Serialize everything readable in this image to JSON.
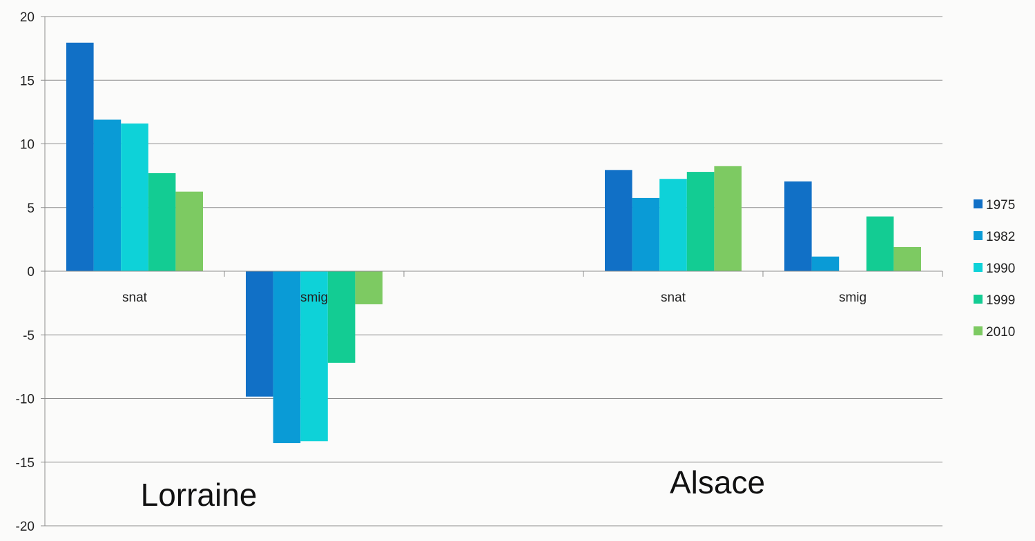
{
  "chart_data": {
    "type": "bar",
    "ylim": [
      -20,
      20
    ],
    "yticks": [
      20,
      15,
      10,
      5,
      0,
      -5,
      -10,
      -15,
      -20
    ],
    "grid": true,
    "legend_position": "right",
    "slots": [
      {
        "label": "snat",
        "group": 0
      },
      {
        "label": "smig",
        "group": 0
      },
      {
        "label": "",
        "group": 0
      },
      {
        "label": "snat",
        "group": 1
      },
      {
        "label": "smig",
        "group": 1
      }
    ],
    "groups": [
      "Lorraine",
      "Alsace"
    ],
    "series": [
      {
        "name": "1975",
        "color": "#1170c6",
        "values": [
          17.95,
          -9.85,
          null,
          7.95,
          7.05
        ]
      },
      {
        "name": "1982",
        "color": "#0a9bd6",
        "values": [
          11.9,
          -13.5,
          null,
          5.75,
          1.15
        ]
      },
      {
        "name": "1990",
        "color": "#0ed2d8",
        "values": [
          11.6,
          -13.35,
          null,
          7.25,
          0
        ]
      },
      {
        "name": "1999",
        "color": "#13cc93",
        "values": [
          7.7,
          -7.2,
          null,
          7.8,
          4.3
        ]
      },
      {
        "name": "2010",
        "color": "#7dca62",
        "values": [
          6.25,
          -2.6,
          null,
          8.25,
          1.9
        ]
      }
    ]
  }
}
